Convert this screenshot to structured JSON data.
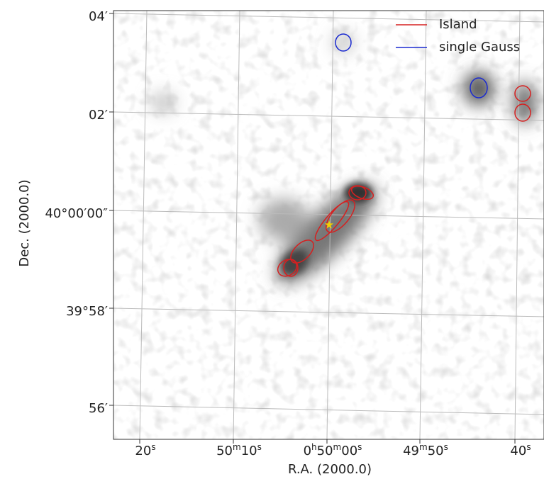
{
  "legend": {
    "entries": [
      "Island",
      "single Gauss"
    ]
  },
  "x_axis": {
    "label": "R.A. (2000.0)",
    "ticks": [
      {
        "parts": [
          "20",
          "s"
        ]
      },
      {
        "parts": [
          "50",
          "m",
          "10",
          "s"
        ]
      },
      {
        "parts": [
          "0",
          "h",
          "50",
          "m",
          "00",
          "s"
        ]
      },
      {
        "parts": [
          "49",
          "m",
          "50",
          "s"
        ]
      },
      {
        "parts": [
          "40",
          "s"
        ]
      }
    ]
  },
  "y_axis": {
    "label": "Dec. (2000.0)",
    "ticks": [
      "04′",
      "02′",
      "40°00′00″",
      "39°58′",
      "56′"
    ]
  }
}
